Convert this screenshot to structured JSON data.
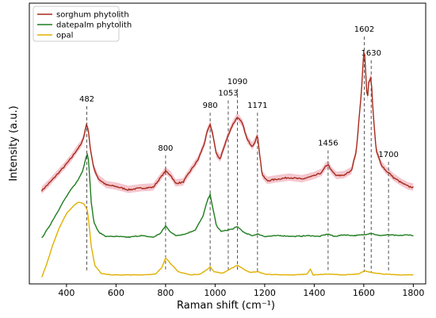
{
  "chart_data": {
    "type": "line",
    "title": "",
    "xlabel": "Raman shift (cm⁻¹)",
    "ylabel": "Intensity (a.u.)",
    "xlim": [
      250,
      1850
    ],
    "xticks": [
      400,
      600,
      800,
      1000,
      1200,
      1400,
      1600,
      1800
    ],
    "y_ticks_shown": false,
    "grid": false,
    "legend_position": "top-left",
    "series": [
      {
        "name": "sorghum phytolith",
        "color": "#a52a1a",
        "shade_color": "#f2bcc6",
        "points": [
          [
            300,
            1.06
          ],
          [
            330,
            1.15
          ],
          [
            360,
            1.25
          ],
          [
            390,
            1.35
          ],
          [
            420,
            1.46
          ],
          [
            440,
            1.55
          ],
          [
            460,
            1.63
          ],
          [
            470,
            1.72
          ],
          [
            480,
            1.86
          ],
          [
            487,
            1.83
          ],
          [
            495,
            1.6
          ],
          [
            510,
            1.33
          ],
          [
            530,
            1.2
          ],
          [
            560,
            1.13
          ],
          [
            600,
            1.11
          ],
          [
            650,
            1.07
          ],
          [
            700,
            1.09
          ],
          [
            750,
            1.1
          ],
          [
            780,
            1.22
          ],
          [
            800,
            1.3
          ],
          [
            820,
            1.25
          ],
          [
            840,
            1.15
          ],
          [
            870,
            1.16
          ],
          [
            900,
            1.3
          ],
          [
            930,
            1.43
          ],
          [
            955,
            1.62
          ],
          [
            970,
            1.8
          ],
          [
            980,
            1.86
          ],
          [
            990,
            1.76
          ],
          [
            1005,
            1.5
          ],
          [
            1020,
            1.45
          ],
          [
            1035,
            1.58
          ],
          [
            1053,
            1.74
          ],
          [
            1070,
            1.86
          ],
          [
            1090,
            1.96
          ],
          [
            1110,
            1.88
          ],
          [
            1130,
            1.68
          ],
          [
            1150,
            1.6
          ],
          [
            1165,
            1.68
          ],
          [
            1171,
            1.74
          ],
          [
            1178,
            1.55
          ],
          [
            1190,
            1.25
          ],
          [
            1210,
            1.18
          ],
          [
            1250,
            1.2
          ],
          [
            1300,
            1.22
          ],
          [
            1350,
            1.2
          ],
          [
            1400,
            1.24
          ],
          [
            1430,
            1.28
          ],
          [
            1445,
            1.35
          ],
          [
            1456,
            1.38
          ],
          [
            1470,
            1.3
          ],
          [
            1490,
            1.24
          ],
          [
            1520,
            1.25
          ],
          [
            1550,
            1.3
          ],
          [
            1570,
            1.55
          ],
          [
            1590,
            2.25
          ],
          [
            1602,
            2.84
          ],
          [
            1607,
            2.55
          ],
          [
            1614,
            2.15
          ],
          [
            1620,
            2.38
          ],
          [
            1630,
            2.44
          ],
          [
            1638,
            2.0
          ],
          [
            1650,
            1.55
          ],
          [
            1670,
            1.38
          ],
          [
            1690,
            1.3
          ],
          [
            1700,
            1.28
          ],
          [
            1720,
            1.22
          ],
          [
            1750,
            1.16
          ],
          [
            1780,
            1.11
          ],
          [
            1800,
            1.1
          ]
        ]
      },
      {
        "name": "datepalm phytolith",
        "color": "#1f7d1f",
        "points": [
          [
            300,
            0.48
          ],
          [
            330,
            0.62
          ],
          [
            360,
            0.78
          ],
          [
            390,
            0.94
          ],
          [
            420,
            1.08
          ],
          [
            445,
            1.18
          ],
          [
            465,
            1.3
          ],
          [
            480,
            1.48
          ],
          [
            486,
            1.52
          ],
          [
            492,
            1.3
          ],
          [
            500,
            0.92
          ],
          [
            510,
            0.68
          ],
          [
            530,
            0.55
          ],
          [
            560,
            0.5
          ],
          [
            600,
            0.5
          ],
          [
            650,
            0.49
          ],
          [
            700,
            0.51
          ],
          [
            750,
            0.49
          ],
          [
            780,
            0.54
          ],
          [
            800,
            0.63
          ],
          [
            815,
            0.57
          ],
          [
            840,
            0.51
          ],
          [
            880,
            0.53
          ],
          [
            920,
            0.58
          ],
          [
            950,
            0.74
          ],
          [
            970,
            0.95
          ],
          [
            980,
            1.01
          ],
          [
            990,
            0.86
          ],
          [
            1005,
            0.63
          ],
          [
            1025,
            0.56
          ],
          [
            1053,
            0.58
          ],
          [
            1070,
            0.59
          ],
          [
            1090,
            0.62
          ],
          [
            1120,
            0.54
          ],
          [
            1150,
            0.51
          ],
          [
            1171,
            0.53
          ],
          [
            1200,
            0.5
          ],
          [
            1260,
            0.51
          ],
          [
            1320,
            0.5
          ],
          [
            1380,
            0.51
          ],
          [
            1420,
            0.5
          ],
          [
            1456,
            0.53
          ],
          [
            1480,
            0.5
          ],
          [
            1520,
            0.52
          ],
          [
            1560,
            0.51
          ],
          [
            1600,
            0.52
          ],
          [
            1630,
            0.54
          ],
          [
            1660,
            0.51
          ],
          [
            1700,
            0.52
          ],
          [
            1740,
            0.51
          ],
          [
            1780,
            0.52
          ],
          [
            1800,
            0.51
          ]
        ]
      },
      {
        "name": "opal",
        "color": "#e0b000",
        "points": [
          [
            300,
            0.0
          ],
          [
            320,
            0.16
          ],
          [
            345,
            0.4
          ],
          [
            370,
            0.6
          ],
          [
            400,
            0.78
          ],
          [
            430,
            0.88
          ],
          [
            450,
            0.92
          ],
          [
            470,
            0.9
          ],
          [
            485,
            0.82
          ],
          [
            500,
            0.38
          ],
          [
            515,
            0.14
          ],
          [
            540,
            0.05
          ],
          [
            580,
            0.03
          ],
          [
            640,
            0.03
          ],
          [
            700,
            0.03
          ],
          [
            760,
            0.04
          ],
          [
            785,
            0.12
          ],
          [
            800,
            0.24
          ],
          [
            820,
            0.17
          ],
          [
            850,
            0.07
          ],
          [
            900,
            0.03
          ],
          [
            940,
            0.04
          ],
          [
            970,
            0.1
          ],
          [
            980,
            0.13
          ],
          [
            995,
            0.07
          ],
          [
            1030,
            0.05
          ],
          [
            1060,
            0.1
          ],
          [
            1090,
            0.15
          ],
          [
            1110,
            0.11
          ],
          [
            1140,
            0.06
          ],
          [
            1171,
            0.07
          ],
          [
            1200,
            0.04
          ],
          [
            1260,
            0.03
          ],
          [
            1320,
            0.03
          ],
          [
            1370,
            0.04
          ],
          [
            1385,
            0.1
          ],
          [
            1395,
            0.03
          ],
          [
            1456,
            0.04
          ],
          [
            1520,
            0.03
          ],
          [
            1580,
            0.04
          ],
          [
            1602,
            0.08
          ],
          [
            1630,
            0.06
          ],
          [
            1680,
            0.04
          ],
          [
            1740,
            0.03
          ],
          [
            1800,
            0.03
          ]
        ]
      }
    ],
    "peak_markers": [
      {
        "x": 482,
        "label": "482",
        "label_y": 2.15
      },
      {
        "x": 800,
        "label": "800",
        "label_y": 1.55
      },
      {
        "x": 980,
        "label": "980",
        "label_y": 2.07
      },
      {
        "x": 1053,
        "label": "1053",
        "label_y": 2.22
      },
      {
        "x": 1090,
        "label": "1090",
        "label_y": 2.36
      },
      {
        "x": 1171,
        "label": "1171",
        "label_y": 2.07
      },
      {
        "x": 1456,
        "label": "1456",
        "label_y": 1.61
      },
      {
        "x": 1602,
        "label": "1602",
        "label_y": 3.0
      },
      {
        "x": 1630,
        "label": "1630",
        "label_y": 2.71
      },
      {
        "x": 1700,
        "label": "1700",
        "label_y": 1.47
      }
    ]
  }
}
